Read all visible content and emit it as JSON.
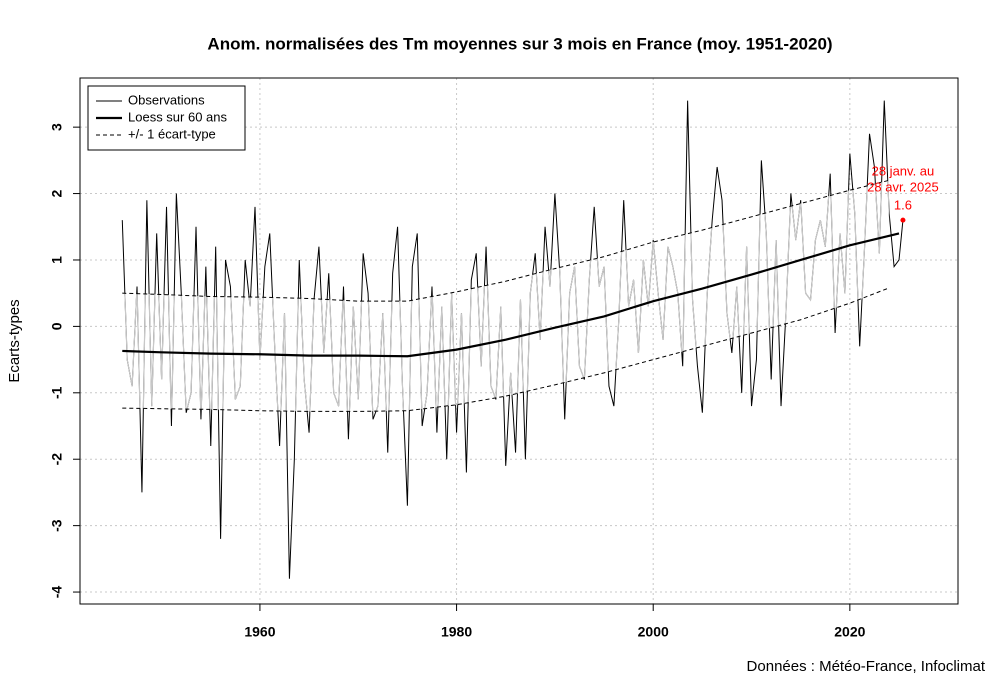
{
  "chart_data": {
    "type": "line",
    "title": "Anom. normalisées des Tm moyennes sur 3 mois en France (moy. 1951-2020)",
    "y_label": "Ecarts-types",
    "source": "Données : Météo-France, Infoclimat",
    "xlim": [
      1941.7,
      2031
    ],
    "ylim": [
      -4.18,
      3.74
    ],
    "xticks": [
      1960,
      1980,
      2000,
      2020
    ],
    "yticks": [
      -4,
      -3,
      -2,
      -1,
      0,
      1,
      2,
      3
    ],
    "grid": true,
    "legend_position": "top-left",
    "series": [
      {
        "name": "Observations",
        "color": "#000000",
        "in_band_color": "#c8c8c8",
        "x": [
          1946,
          1946.5,
          1947,
          1947.5,
          1948,
          1948.5,
          1949,
          1949.5,
          1950,
          1950.5,
          1951,
          1951.5,
          1952,
          1952.5,
          1953,
          1953.5,
          1954,
          1954.5,
          1955,
          1955.5,
          1956,
          1956.5,
          1957,
          1957.5,
          1958,
          1958.5,
          1959,
          1959.5,
          1960,
          1960.5,
          1961,
          1961.5,
          1962,
          1962.5,
          1963,
          1963.5,
          1964,
          1964.5,
          1965,
          1965.5,
          1966,
          1966.5,
          1967,
          1967.5,
          1968,
          1968.5,
          1969,
          1969.5,
          1970,
          1970.5,
          1971,
          1971.5,
          1972,
          1972.5,
          1973,
          1973.5,
          1974,
          1974.5,
          1975,
          1975.5,
          1976,
          1976.5,
          1977,
          1977.5,
          1978,
          1978.5,
          1979,
          1979.5,
          1980,
          1980.5,
          1981,
          1981.5,
          1982,
          1982.5,
          1983,
          1983.5,
          1984,
          1984.5,
          1985,
          1985.5,
          1986,
          1986.5,
          1987,
          1987.5,
          1988,
          1988.5,
          1989,
          1989.5,
          1990,
          1990.5,
          1991,
          1991.5,
          1992,
          1992.5,
          1993,
          1993.5,
          1994,
          1994.5,
          1995,
          1995.5,
          1996,
          1996.5,
          1997,
          1997.5,
          1998,
          1998.5,
          1999,
          1999.5,
          2000,
          2000.5,
          2001,
          2001.5,
          2002,
          2002.5,
          2003,
          2003.5,
          2004,
          2004.5,
          2005,
          2005.5,
          2006,
          2006.5,
          2007,
          2007.5,
          2008,
          2008.5,
          2009,
          2009.5,
          2010,
          2010.5,
          2011,
          2011.5,
          2012,
          2012.5,
          2013,
          2013.5,
          2014,
          2014.5,
          2015,
          2015.5,
          2016,
          2016.5,
          2017,
          2017.5,
          2018,
          2018.5,
          2019,
          2019.5,
          2020,
          2020.5,
          2021,
          2021.5,
          2022,
          2022.5,
          2023,
          2023.5,
          2024,
          2024.5,
          2025,
          2025.4
        ],
        "values": [
          1.6,
          -0.5,
          -0.9,
          0.6,
          -2.5,
          1.9,
          -1.2,
          1.4,
          -0.8,
          1.8,
          -1.5,
          2.0,
          0.5,
          -1.3,
          -1.0,
          1.5,
          -1.4,
          0.9,
          -1.8,
          1.2,
          -3.2,
          1.0,
          0.6,
          -1.1,
          -0.9,
          1.0,
          0.3,
          1.8,
          -0.5,
          0.9,
          1.4,
          -0.3,
          -1.8,
          0.2,
          -3.8,
          -2.0,
          1.0,
          -0.8,
          -1.6,
          0.4,
          1.2,
          -0.4,
          0.8,
          -1.0,
          -1.2,
          0.6,
          -1.7,
          0.3,
          -1.1,
          1.1,
          0.5,
          -1.4,
          -1.2,
          0.2,
          -1.9,
          0.8,
          1.5,
          -0.9,
          -2.7,
          0.9,
          1.4,
          -1.5,
          -1.0,
          0.6,
          -1.6,
          0.3,
          -2.0,
          0.5,
          -1.6,
          0.2,
          -2.2,
          0.7,
          1.1,
          -0.6,
          1.2,
          -0.9,
          -1.1,
          0.3,
          -2.1,
          -0.7,
          -1.9,
          0.4,
          -2.0,
          0.5,
          1.1,
          -0.2,
          1.5,
          0.6,
          2.0,
          0.8,
          -1.4,
          0.5,
          0.9,
          -0.6,
          -0.8,
          0.7,
          1.8,
          0.6,
          0.9,
          -0.9,
          -1.2,
          0.1,
          1.9,
          0.3,
          0.7,
          -0.4,
          1.0,
          0.3,
          1.3,
          0.5,
          -0.2,
          1.2,
          0.9,
          0.5,
          -0.6,
          3.4,
          0.4,
          -0.6,
          -1.3,
          0.5,
          1.6,
          2.4,
          1.9,
          0.2,
          -0.4,
          0.6,
          -1.0,
          1.2,
          -1.2,
          -0.5,
          2.5,
          1.4,
          -0.8,
          1.3,
          -1.2,
          0.2,
          2.0,
          1.3,
          1.9,
          0.5,
          0.4,
          1.3,
          1.6,
          1.2,
          2.3,
          -0.1,
          1.4,
          0.5,
          2.6,
          1.7,
          -0.3,
          1.2,
          2.9,
          2.4,
          1.1,
          3.4,
          1.7,
          0.9,
          1.0,
          1.6
        ]
      },
      {
        "name": "Loess sur 60 ans",
        "color": "#000000",
        "x": [
          1946,
          1950,
          1955,
          1960,
          1965,
          1970,
          1975,
          1980,
          1985,
          1990,
          1995,
          2000,
          2005,
          2010,
          2015,
          2020,
          2025
        ],
        "values": [
          -0.37,
          -0.39,
          -0.41,
          -0.42,
          -0.44,
          -0.44,
          -0.45,
          -0.35,
          -0.2,
          -0.02,
          0.15,
          0.38,
          0.57,
          0.78,
          1.0,
          1.22,
          1.4
        ]
      }
    ],
    "band": {
      "name": "+/- 1 écart-type",
      "color": "#000000",
      "x": [
        1946,
        1950,
        1955,
        1960,
        1965,
        1970,
        1975,
        1980,
        1985,
        1990,
        1995,
        2000,
        2005,
        2010,
        2015,
        2020,
        2024
      ],
      "upper": [
        0.5,
        0.48,
        0.45,
        0.44,
        0.42,
        0.38,
        0.38,
        0.52,
        0.68,
        0.87,
        1.05,
        1.27,
        1.45,
        1.65,
        1.85,
        2.05,
        2.2
      ],
      "lower": [
        -1.23,
        -1.24,
        -1.25,
        -1.27,
        -1.28,
        -1.28,
        -1.27,
        -1.18,
        -1.05,
        -0.88,
        -0.7,
        -0.5,
        -0.3,
        -0.1,
        0.1,
        0.35,
        0.58
      ]
    },
    "annotation": {
      "lines": [
        "28 janv. au",
        "28 avr. 2025"
      ],
      "color": "#ff0000"
    }
  }
}
